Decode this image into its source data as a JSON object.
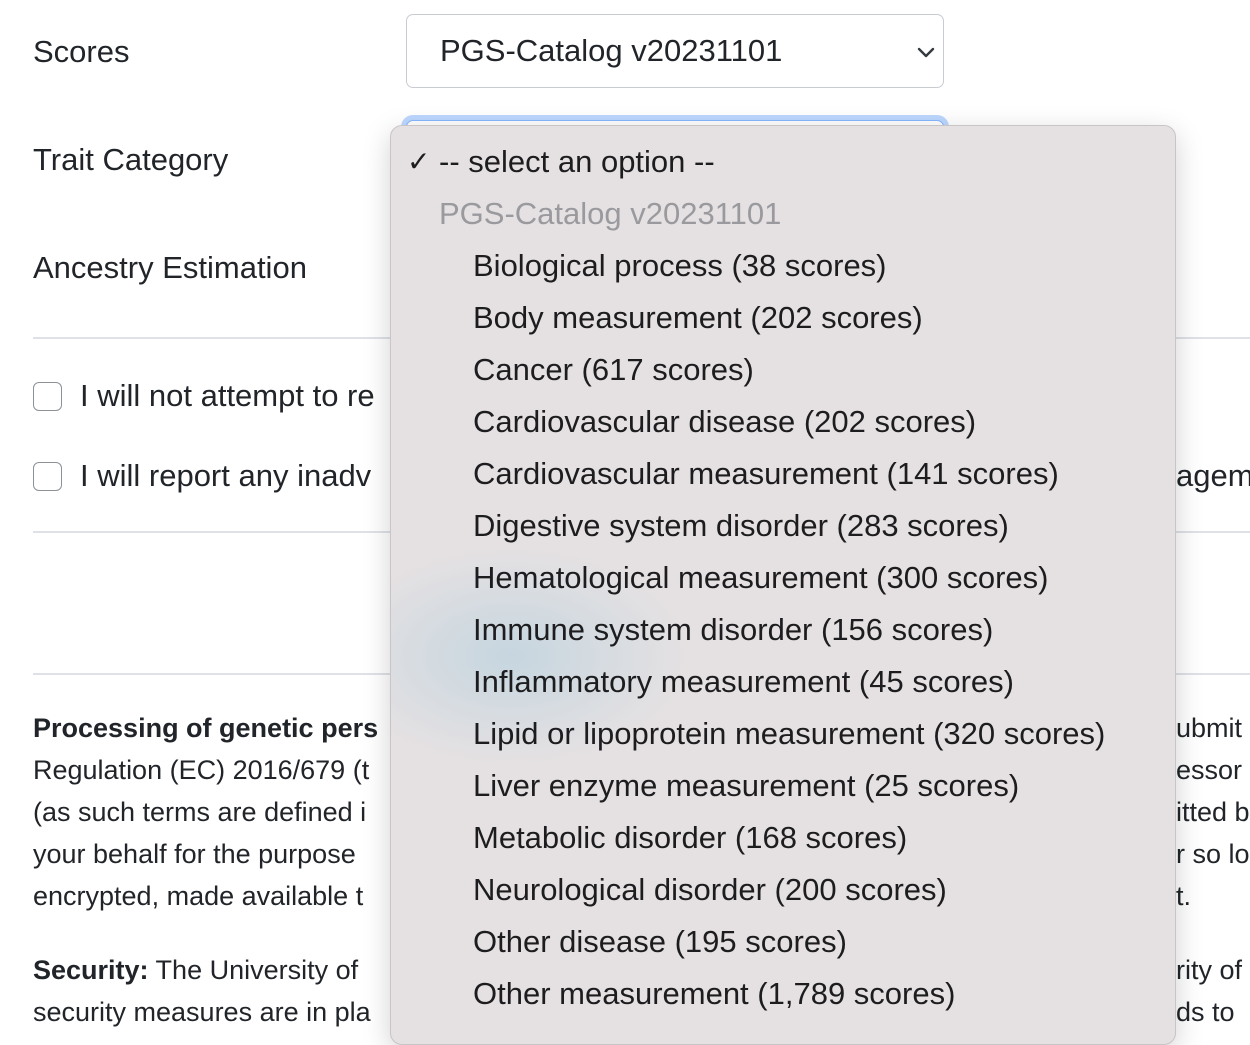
{
  "form": {
    "scores_label": "Scores",
    "scores_value": "PGS-Catalog v20231101",
    "trait_label": "Trait Category",
    "ancestry_label": "Ancestry Estimation"
  },
  "checkboxes": [
    {
      "label": "I will not attempt to re",
      "checked": false
    },
    {
      "label": "I will report any inadv",
      "checked": false
    }
  ],
  "right_fragments": {
    "checkbox2_tail": "ageme",
    "para_lines": [
      "ubmit",
      "essor",
      "itted b",
      "r so lo",
      "t."
    ],
    "security_lines": [
      "rity of",
      "ds to"
    ]
  },
  "processing": {
    "heading": "Processing of genetic pers",
    "lines": [
      "Regulation (EC) 2016/679 (t",
      "(as such terms are defined i",
      "your behalf for the purpose",
      "encrypted, made available t"
    ]
  },
  "security": {
    "heading": "Security:",
    "line1": " The University of",
    "line2": "security measures are in pla"
  },
  "dropdown": {
    "selected": "-- select an option --",
    "check_glyph": "✓",
    "group": "PGS-Catalog v20231101",
    "options": [
      "Biological process (38 scores)",
      "Body measurement (202 scores)",
      "Cancer (617 scores)",
      "Cardiovascular disease (202 scores)",
      "Cardiovascular measurement (141 scores)",
      "Digestive system disorder (283 scores)",
      "Hematological measurement (300 scores)",
      "Immune system disorder (156 scores)",
      "Inflammatory measurement (45 scores)",
      "Lipid or lipoprotein measurement (320 scores)",
      "Liver enzyme measurement (25 scores)",
      "Metabolic disorder (168 scores)",
      "Neurological disorder (200 scores)",
      "Other disease (195 scores)",
      "Other measurement (1,789 scores)"
    ]
  }
}
